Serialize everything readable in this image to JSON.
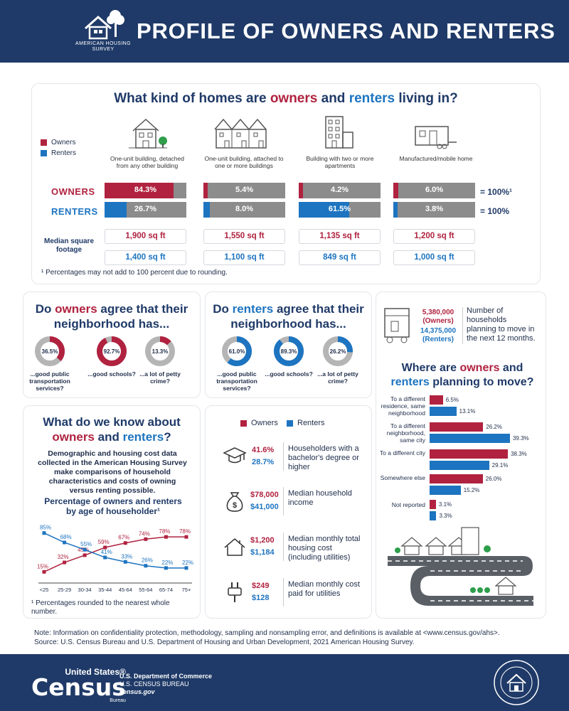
{
  "header": {
    "title": "PROFILE OF OWNERS AND RENTERS",
    "logo_text_1": "AMERICAN HOUSING",
    "logo_text_2": "SURVEY"
  },
  "colors": {
    "navy": "#1f3a68",
    "owners": "#b0223f",
    "renters": "#1d74c0",
    "gray": "#8c8c8c"
  },
  "home_types": {
    "title_pre": "What kind of homes are ",
    "title_owners": "owners",
    "title_and": " and ",
    "title_renters": "renters",
    "title_post": " living in?",
    "legend_owners": "Owners",
    "legend_renters": "Renters",
    "types": [
      "One-unit building, detached from any other building",
      "One-unit building, attached to one or more buildings",
      "Building with two or more apartments",
      "Manufactured/mobile home"
    ],
    "owners_label": "OWNERS",
    "renters_label": "RENTERS",
    "owners_text": [
      "84.3%",
      "5.4%",
      "4.2%",
      "6.0%"
    ],
    "renters_text": [
      "26.7%",
      "8.0%",
      "61.5%",
      "3.8%"
    ],
    "owners_total": "= 100%¹",
    "renters_total": "= 100%",
    "sqft_label_1": "Median square",
    "sqft_label_2": "footage",
    "owners_sqft": [
      "1,900 sq ft",
      "1,550 sq ft",
      "1,135 sq ft",
      "1,200 sq ft"
    ],
    "renters_sqft": [
      "1,400 sq ft",
      "1,100 sq ft",
      "849 sq ft",
      "1,000 sq ft"
    ],
    "footnote": "¹ Percentages may not add to 100 percent due to rounding."
  },
  "owners_agree": {
    "title_1": "Do ",
    "title_2": "owners",
    "title_3": " agree that their",
    "title_4": "neighborhood has...",
    "items": [
      {
        "value": "36.5%",
        "label": "...good public transportation services?"
      },
      {
        "value": "92.7%",
        "label": "...good schools?"
      },
      {
        "value": "13.3%",
        "label": "...a lot of petty crime?"
      }
    ]
  },
  "renters_agree": {
    "title_1": "Do ",
    "title_2": "renters",
    "title_3": " agree that their",
    "title_4": "neighborhood has...",
    "items": [
      {
        "value": "61.0%",
        "label": "...good public transportation services?"
      },
      {
        "value": "89.3%",
        "label": "...good schools?"
      },
      {
        "value": "26.2%",
        "label": "...a lot of petty crime?"
      }
    ]
  },
  "moving": {
    "owners_count": "5,380,000",
    "owners_tag": "(Owners)",
    "renters_count": "14,375,000",
    "renters_tag": "(Renters)",
    "desc": "Number of households planning to move in the next 12 months.",
    "title_1": "Where are ",
    "title_2": "owners",
    "title_3": " and",
    "title_4": "renters",
    "title_5": " planning to move?"
  },
  "know": {
    "title_1": "What do we know about",
    "title_2": "owners",
    "title_3": " and ",
    "title_4": "renters",
    "title_5": "?",
    "paragraph": "Demographic and housing cost data collected in the American Housing Survey make comparisons of household characteristics and costs of owning versus renting possible.",
    "chart_title_1": "Percentage of owners and renters",
    "chart_title_2": "by age of householder¹",
    "footnote": "¹ Percentages rounded to the nearest whole number."
  },
  "stats": {
    "legend_owners": "Owners",
    "legend_renters": "Renters",
    "items": [
      {
        "icon": "graduation-cap-icon",
        "owners": "41.6%",
        "renters": "28.7%",
        "label": "Householders with a bachelor's degree or higher"
      },
      {
        "icon": "money-bag-icon",
        "owners": "$78,000",
        "renters": "$41,000",
        "label": "Median household income"
      },
      {
        "icon": "house-outline-icon",
        "owners": "$1,200",
        "renters": "$1,184",
        "label": "Median monthly total housing cost (including utilities)"
      },
      {
        "icon": "power-plug-icon",
        "owners": "$249",
        "renters": "$128",
        "label": "Median monthly cost paid for utilities"
      }
    ]
  },
  "bottom_note": {
    "line1": "Note: Information on confidentiality protection, methodology, sampling and nonsampling error, and definitions is available at <www.census.gov/ahs>.",
    "line2": "Source: U.S. Census Bureau and U.S. Department of Housing and Urban Development, 2021 American Housing Survey."
  },
  "footer": {
    "logo_us": "United States®",
    "logo_census": "Census",
    "logo_bureau": "Bureau",
    "agency_1": "U.S. Department of Commerce",
    "agency_2": "U.S. CENSUS BUREAU",
    "agency_3": "census.gov"
  },
  "chart_data": [
    {
      "type": "bar",
      "title": "What kind of homes are owners and renters living in?",
      "categories": [
        "One-unit building, detached from any other building",
        "One-unit building, attached to one or more buildings",
        "Building with two or more apartments",
        "Manufactured/mobile home"
      ],
      "series": [
        {
          "name": "Owners",
          "values": [
            84.3,
            5.4,
            4.2,
            6.0
          ]
        },
        {
          "name": "Renters",
          "values": [
            26.7,
            8.0,
            61.5,
            3.8
          ]
        }
      ],
      "ylim": [
        0,
        100
      ]
    },
    {
      "type": "pie",
      "title": "Do owners agree that their neighborhood has...",
      "categories": [
        "...good public transportation services?",
        "...good schools?",
        "...a lot of petty crime?"
      ],
      "values": [
        36.5,
        92.7,
        13.3
      ]
    },
    {
      "type": "pie",
      "title": "Do renters agree that their neighborhood has...",
      "categories": [
        "...good public transportation services?",
        "...good schools?",
        "...a lot of petty crime?"
      ],
      "values": [
        61.0,
        89.3,
        26.2
      ]
    },
    {
      "type": "bar",
      "orientation": "horizontal",
      "title": "Where are owners and renters planning to move?",
      "categories": [
        "To a different residence, same neighborhood",
        "To a different neighborhood, same city",
        "To a different city",
        "Somewhere else",
        "Not reported"
      ],
      "series": [
        {
          "name": "Owners",
          "values": [
            6.5,
            26.2,
            38.3,
            26.0,
            3.1
          ]
        },
        {
          "name": "Renters",
          "values": [
            13.1,
            39.3,
            29.1,
            15.2,
            3.3
          ]
        }
      ],
      "xlim": [
        0,
        40
      ]
    },
    {
      "type": "line",
      "title": "Percentage of owners and renters by age of householder",
      "categories": [
        "<25",
        "25-29",
        "30-34",
        "35-44",
        "45-64",
        "55-64",
        "65-74",
        "75+"
      ],
      "series": [
        {
          "name": "Owners",
          "values": [
            15,
            32,
            45,
            59,
            67,
            74,
            78,
            78
          ]
        },
        {
          "name": "Renters",
          "values": [
            85,
            68,
            55,
            41,
            33,
            26,
            22,
            22
          ]
        }
      ],
      "ylim": [
        0,
        100
      ]
    }
  ]
}
